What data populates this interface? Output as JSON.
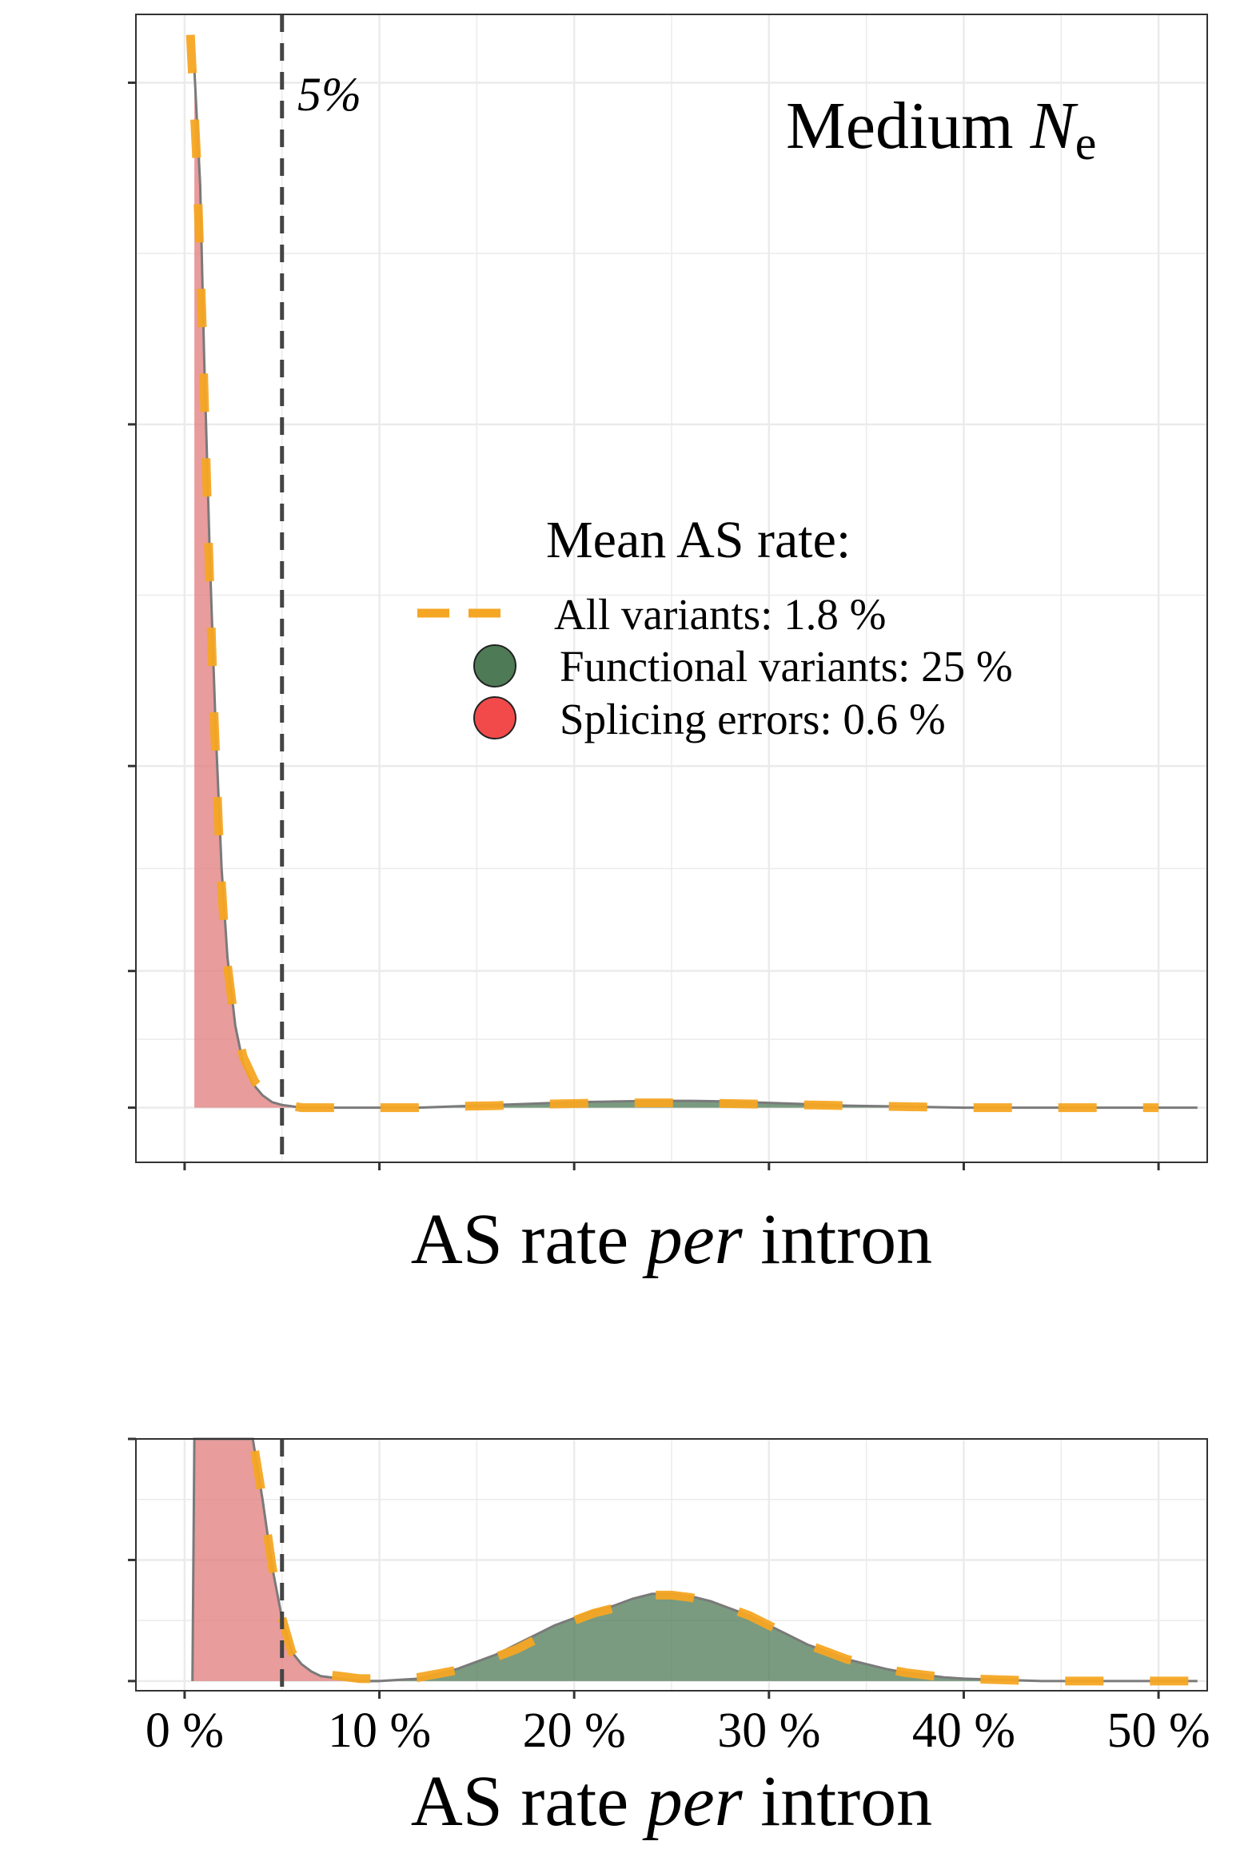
{
  "figure": {
    "vline_label": "5%",
    "panel_title_main": "Medium ",
    "panel_title_italic": "N",
    "panel_title_sub": "e"
  },
  "colors": {
    "splicing_errors": "#e07b7b",
    "functional_variants": "#4e7a55",
    "all_variants": "#f5a623",
    "density_line": "#7a7a7a",
    "vline": "#444444",
    "grid": "#ebebeb",
    "panel_border": "#333333"
  },
  "legend": {
    "title": "Mean AS rate:",
    "items": [
      {
        "label": "All variants: 1.8 %",
        "key": "all_variants",
        "shape": "dashed-line"
      },
      {
        "label": "Functional variants: 25 %",
        "key": "functional_variants",
        "shape": "circle"
      },
      {
        "label": "Splicing errors: 0.6 %",
        "key": "splicing_errors",
        "shape": "circle"
      }
    ]
  },
  "chart_data": [
    {
      "type": "area",
      "panel": "top",
      "xlabel_parts": [
        "AS rate ",
        "per",
        " intron"
      ],
      "xlim": [
        -2.5,
        52.5
      ],
      "ylim": [
        -0.8,
        16.0
      ],
      "x_ticks": [
        0,
        10,
        20,
        30,
        40,
        50
      ],
      "y_ticks": [
        0,
        2,
        5,
        10,
        15
      ],
      "vline_x": 5,
      "grid": true,
      "series": [
        {
          "name": "Splicing errors",
          "color_key": "splicing_errors",
          "fill": true,
          "x": [
            0.5,
            0.8,
            1.0,
            1.3,
            1.6,
            1.9,
            2.2,
            2.6,
            3.0,
            3.5,
            4.0,
            4.5,
            5.0,
            5.5,
            6.0
          ],
          "y": [
            15.2,
            13.5,
            11.0,
            8.0,
            5.5,
            3.5,
            2.2,
            1.2,
            0.65,
            0.35,
            0.18,
            0.08,
            0.04,
            0.02,
            0.0
          ]
        },
        {
          "name": "Functional variants",
          "color_key": "functional_variants",
          "fill": true,
          "x": [
            6,
            8,
            10,
            12,
            14,
            16,
            18,
            20,
            22,
            24,
            26,
            28,
            30,
            32,
            34,
            36,
            38,
            40,
            42,
            45,
            50,
            52
          ],
          "y": [
            0.0,
            0.0,
            0.0,
            0.0,
            0.02,
            0.04,
            0.06,
            0.08,
            0.09,
            0.1,
            0.1,
            0.09,
            0.07,
            0.05,
            0.03,
            0.02,
            0.01,
            0.0,
            0.0,
            0.0,
            0.0,
            0.0
          ]
        },
        {
          "name": "All variants",
          "color_key": "all_variants",
          "fill": false,
          "dashed": true,
          "x": [
            0.3,
            0.6,
            0.9,
            1.2,
            1.5,
            1.8,
            2.1,
            2.5,
            3.0,
            3.6,
            4.2,
            5.0,
            6.0,
            8.0,
            10.0,
            12.0,
            14.0,
            16.0,
            18.0,
            20.0,
            22.0,
            24.0,
            26.0,
            28.0,
            30.0,
            32.0,
            34.0,
            36.0,
            38.0,
            40.0,
            42.0,
            44.0,
            46.0,
            48.0,
            50.0
          ],
          "y": [
            15.7,
            14.0,
            11.5,
            8.5,
            5.8,
            3.7,
            2.3,
            1.4,
            0.75,
            0.38,
            0.18,
            0.05,
            0.0,
            0.0,
            0.0,
            0.0,
            0.02,
            0.03,
            0.05,
            0.06,
            0.07,
            0.07,
            0.07,
            0.06,
            0.05,
            0.04,
            0.03,
            0.02,
            0.01,
            0.0,
            0.0,
            0.0,
            0.0,
            0.0,
            0.0
          ]
        }
      ]
    },
    {
      "type": "area",
      "panel": "bottom",
      "xlabel_parts": [
        "AS rate ",
        "per",
        " intron"
      ],
      "xlim": [
        -2.5,
        52.5
      ],
      "ylim": [
        -0.04,
        1.0
      ],
      "x_ticks": [
        0,
        10,
        20,
        30,
        40,
        50
      ],
      "x_tick_labels": [
        "0 %",
        "10 %",
        "20 %",
        "30 %",
        "40 %",
        "50 %"
      ],
      "y_ticks": [
        0,
        0.5,
        1.0
      ],
      "vline_x": 5,
      "grid": true,
      "series": [
        {
          "name": "Splicing errors",
          "color_key": "splicing_errors",
          "fill": true,
          "x": [
            0.4,
            0.5,
            1.0,
            1.5,
            2.0,
            2.5,
            3.0,
            3.5,
            4.0,
            4.5,
            5.0,
            5.5,
            6.0,
            6.5,
            7.0,
            8.0,
            9.0,
            10.0
          ],
          "y": [
            0.0,
            1.2,
            1.2,
            1.2,
            1.2,
            1.2,
            1.1,
            1.0,
            0.75,
            0.47,
            0.26,
            0.12,
            0.07,
            0.04,
            0.02,
            0.01,
            0.0,
            0.0
          ]
        },
        {
          "name": "Functional variants",
          "color_key": "functional_variants",
          "fill": true,
          "x": [
            9,
            10,
            11,
            12,
            13,
            14,
            15,
            16,
            17,
            18,
            19,
            20,
            21,
            22,
            23,
            24,
            25,
            26,
            27,
            28,
            29,
            30,
            31,
            32,
            33,
            34,
            35,
            36,
            37,
            38,
            39,
            40,
            42,
            44,
            46,
            48,
            50,
            52
          ],
          "y": [
            0.0,
            0.0,
            0.005,
            0.01,
            0.03,
            0.05,
            0.08,
            0.11,
            0.15,
            0.19,
            0.23,
            0.26,
            0.29,
            0.31,
            0.34,
            0.36,
            0.36,
            0.35,
            0.33,
            0.3,
            0.27,
            0.23,
            0.19,
            0.15,
            0.12,
            0.09,
            0.07,
            0.05,
            0.035,
            0.025,
            0.015,
            0.01,
            0.005,
            0.0,
            0.0,
            0.0,
            0.0,
            0.0
          ]
        },
        {
          "name": "All variants",
          "color_key": "all_variants",
          "fill": false,
          "dashed": true,
          "x": [
            3.6,
            4.0,
            4.5,
            5.0,
            5.5,
            6.0,
            7.0,
            8.0,
            9.0,
            10.0,
            11.0,
            12.0,
            13.0,
            14.0,
            15.0,
            16.0,
            17.0,
            18.0,
            19.0,
            20.0,
            21.0,
            22.0,
            23.0,
            24.0,
            25.0,
            26.0,
            27.0,
            28.0,
            29.0,
            30.0,
            31.0,
            32.0,
            33.0,
            34.0,
            35.0,
            36.0,
            37.0,
            38.0,
            39.0,
            40.0,
            42.0,
            44.0,
            46.0,
            48.0,
            50.0,
            52.0
          ],
          "y": [
            0.95,
            0.75,
            0.47,
            0.26,
            0.12,
            0.06,
            0.03,
            0.02,
            0.01,
            0.01,
            0.01,
            0.015,
            0.03,
            0.045,
            0.07,
            0.1,
            0.13,
            0.17,
            0.21,
            0.25,
            0.28,
            0.3,
            0.33,
            0.355,
            0.355,
            0.345,
            0.325,
            0.3,
            0.27,
            0.23,
            0.19,
            0.15,
            0.12,
            0.09,
            0.07,
            0.05,
            0.035,
            0.025,
            0.015,
            0.01,
            0.005,
            0.0,
            0.0,
            0.0,
            0.0,
            0.0
          ]
        }
      ]
    }
  ]
}
